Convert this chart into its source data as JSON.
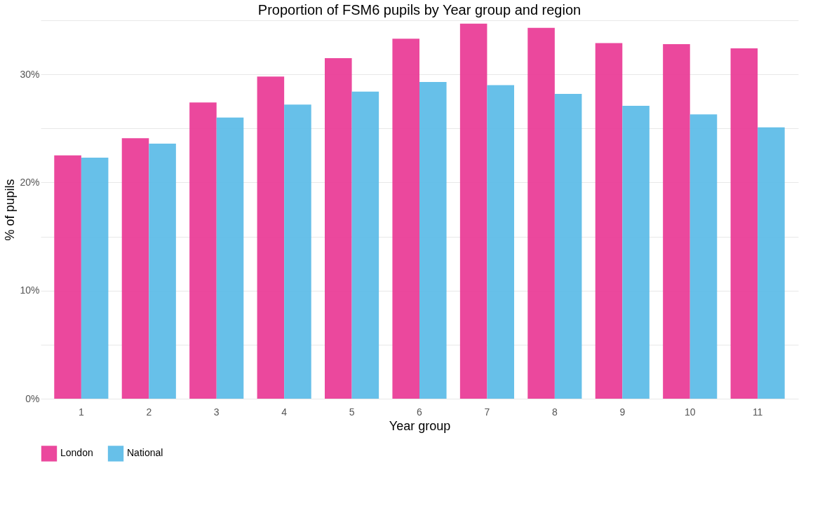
{
  "chart_data": {
    "type": "bar",
    "title": "Proportion of FSM6 pupils by Year group and region",
    "xlabel": "Year group",
    "ylabel": "% of pupils",
    "categories": [
      "1",
      "2",
      "3",
      "4",
      "5",
      "6",
      "7",
      "8",
      "9",
      "10",
      "11"
    ],
    "series": [
      {
        "name": "London",
        "color": "#ea3e98",
        "values": [
          22.5,
          24.1,
          27.4,
          29.8,
          31.5,
          33.3,
          34.7,
          34.3,
          32.9,
          32.8,
          32.4
        ]
      },
      {
        "name": "National",
        "color": "#5fbde8",
        "values": [
          22.3,
          23.6,
          26.0,
          27.2,
          28.4,
          29.3,
          29.0,
          28.2,
          27.1,
          26.3,
          25.1
        ]
      }
    ],
    "ylim": [
      0,
      35
    ],
    "yticks": [
      {
        "value": 0,
        "label": "0%"
      },
      {
        "value": 5,
        "label": null
      },
      {
        "value": 10,
        "label": "10%"
      },
      {
        "value": 15,
        "label": null
      },
      {
        "value": 20,
        "label": "20%"
      },
      {
        "value": 25,
        "label": null
      },
      {
        "value": 30,
        "label": "30%"
      },
      {
        "value": 35,
        "label": null
      }
    ],
    "grid": "y",
    "legend": "bottom"
  }
}
